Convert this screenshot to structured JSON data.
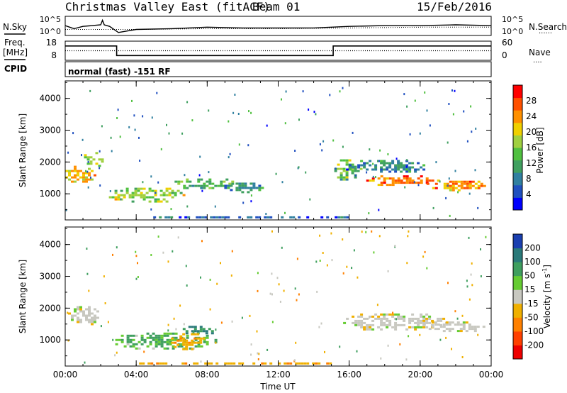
{
  "header": {
    "station": "Christmas Valley East (fitACF)",
    "beam": "Beam 01",
    "date": "15/Feb/2016"
  },
  "side_labels": {
    "nsky": "N.Sky",
    "freq_top": "Freq.",
    "freq_bottom": "[MHz]",
    "cpid": "CPID",
    "nsearch": "N.Search",
    "nave": "Nave",
    "nsearch_style": "......",
    "nave_style": "...."
  },
  "cpid_text": "normal (fast) -151 RF",
  "chart_data": [
    {
      "type": "line",
      "panel": "noise",
      "y_left_ticks": [
        "10^5",
        "10^0"
      ],
      "y_right_ticks": [
        "10^5",
        "10^0"
      ],
      "series": [
        {
          "name": "N.Sky",
          "style": "solid",
          "x": [
            0,
            0.25,
            0.5,
            1,
            1.5,
            2,
            2.1,
            2.2,
            2.5,
            3,
            4,
            6,
            8,
            10,
            12,
            14,
            16,
            18,
            20,
            22,
            24
          ],
          "y": [
            0.55,
            0.45,
            0.35,
            0.5,
            0.55,
            0.6,
            0.9,
            0.6,
            0.5,
            0.1,
            0.3,
            0.35,
            0.45,
            0.4,
            0.4,
            0.4,
            0.5,
            0.55,
            0.55,
            0.6,
            0.55
          ]
        },
        {
          "name": "N.Search",
          "style": "dotted",
          "x": [
            0,
            4,
            8,
            12,
            16,
            20,
            24
          ],
          "y": [
            0.3,
            0.3,
            0.35,
            0.35,
            0.4,
            0.45,
            0.45
          ]
        }
      ]
    },
    {
      "type": "line",
      "panel": "frequency",
      "y_left_ticks": [
        "18",
        "8"
      ],
      "y_right_ticks": [
        "60",
        "0"
      ],
      "series": [
        {
          "name": "Freq.",
          "style": "solid",
          "x": [
            0,
            2.9,
            2.9,
            15.1,
            15.1,
            24
          ],
          "y": [
            15.5,
            15.5,
            10.5,
            10.5,
            15.5,
            15.5
          ]
        },
        {
          "name": "Nave",
          "style": "dotted",
          "x": [
            0,
            24
          ],
          "y": [
            13,
            13
          ]
        }
      ]
    },
    {
      "type": "heatmap",
      "panel": "power",
      "x_ticks": [
        "00:00",
        "04:00",
        "08:00",
        "12:00",
        "16:00",
        "20:00",
        "00:00"
      ],
      "xlim": [
        0,
        24
      ],
      "ylabel": "Slant Range [km]",
      "y_ticks": [
        "1000",
        "2000",
        "3000",
        "4000"
      ],
      "ylim": [
        180,
        4550
      ],
      "colorbar": {
        "label": "Power [dB]",
        "ticks": [
          "28",
          "24",
          "20",
          "16",
          "12",
          "8",
          "4"
        ],
        "range": [
          0,
          32
        ]
      },
      "regions": [
        {
          "t": 0.8,
          "r": 1650,
          "dt": 0.9,
          "dr": 300,
          "v": 22
        },
        {
          "t": 1.5,
          "r": 2100,
          "dt": 0.6,
          "dr": 280,
          "v": 16
        },
        {
          "t": 4.5,
          "r": 1000,
          "dt": 2.2,
          "dr": 260,
          "v": 17
        },
        {
          "t": 7.8,
          "r": 1350,
          "dt": 1.8,
          "dr": 200,
          "v": 13
        },
        {
          "t": 10.0,
          "r": 1250,
          "dt": 1.2,
          "dr": 170,
          "v": 10
        },
        {
          "t": 15.8,
          "r": 1800,
          "dt": 0.8,
          "dr": 350,
          "v": 15
        },
        {
          "t": 19.0,
          "r": 1450,
          "dt": 2.2,
          "dr": 200,
          "v": 26
        },
        {
          "t": 22.0,
          "r": 1300,
          "dt": 1.8,
          "dr": 180,
          "v": 24
        },
        {
          "t": 18.0,
          "r": 1900,
          "dt": 2.5,
          "dr": 230,
          "v": 9
        },
        {
          "t": 10.0,
          "r": 300,
          "dt": 6.0,
          "dr": 60,
          "v": 6
        }
      ]
    },
    {
      "type": "heatmap",
      "panel": "velocity",
      "x_ticks": [
        "00:00",
        "04:00",
        "08:00",
        "12:00",
        "16:00",
        "20:00",
        "00:00"
      ],
      "xlim": [
        0,
        24
      ],
      "xlabel": "Time UT",
      "ylabel": "Slant Range [km]",
      "y_ticks": [
        "1000",
        "2000",
        "3000",
        "4000"
      ],
      "ylim": [
        180,
        4550
      ],
      "colorbar": {
        "label": "Velocity [m s^-1]",
        "ticks": [
          "200",
          "100",
          "50",
          "15",
          "-15",
          "-50",
          "-100",
          "-200"
        ]
      },
      "regions": [
        {
          "t": 1.0,
          "r": 1800,
          "dt": 1.0,
          "dr": 330,
          "v": 0
        },
        {
          "t": 5.5,
          "r": 1000,
          "dt": 3.0,
          "dr": 300,
          "v": 35
        },
        {
          "t": 7.5,
          "r": 1350,
          "dt": 1.2,
          "dr": 160,
          "v": 80
        },
        {
          "t": 6.8,
          "r": 1000,
          "dt": 1.0,
          "dr": 280,
          "v": -40
        },
        {
          "t": 18.5,
          "r": 1600,
          "dt": 3.0,
          "dr": 300,
          "v": 0
        },
        {
          "t": 22.0,
          "r": 1450,
          "dt": 2.0,
          "dr": 200,
          "v": 0
        },
        {
          "t": 10.0,
          "r": 300,
          "dt": 6.0,
          "dr": 60,
          "v": -40
        }
      ]
    }
  ]
}
